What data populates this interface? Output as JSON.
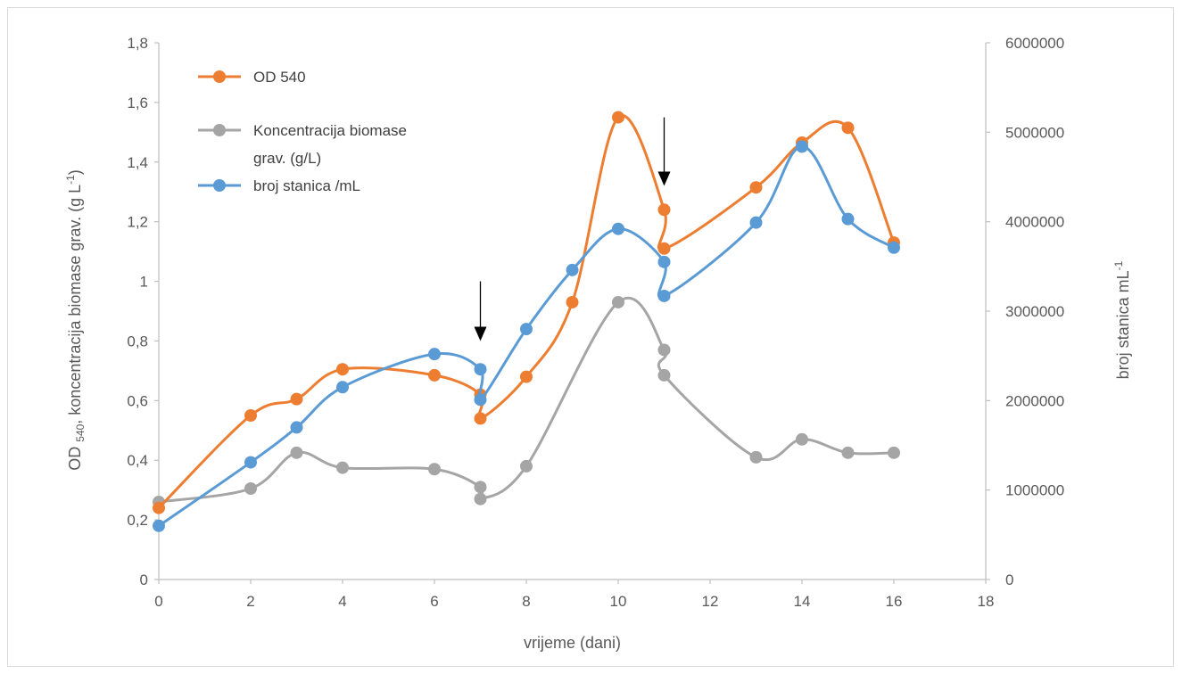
{
  "chart_data": {
    "type": "line",
    "smooth": true,
    "title": "",
    "xlabel": "vrijeme (dani)",
    "ylabel": {
      "main": "OD ",
      "sub": "540",
      "rest": ", koncentracija biomase grav. (g L",
      "sup": "-1",
      "end": ")"
    },
    "y2label": {
      "main": "broj stanica mL",
      "sup": "-1"
    },
    "xlim": [
      0,
      18
    ],
    "ylim": [
      0,
      1.8
    ],
    "y2lim": [
      0,
      6000000
    ],
    "x_ticks": [
      "0",
      "2",
      "4",
      "6",
      "8",
      "10",
      "12",
      "14",
      "16",
      "18"
    ],
    "y_ticks": [
      "0",
      "0,2",
      "0,4",
      "0,6",
      "0,8",
      "1",
      "1,2",
      "1,4",
      "1,6",
      "1,8"
    ],
    "y2_ticks": [
      "0",
      "1000000",
      "2000000",
      "3000000",
      "4000000",
      "5000000",
      "6000000"
    ],
    "grid": false,
    "legend_position": "top-left",
    "series": [
      {
        "name": "OD 540",
        "color": "#ED7D31",
        "axis": "left",
        "x": [
          0,
          2,
          3,
          4,
          6,
          7,
          7,
          8,
          9,
          10,
          11,
          11,
          13,
          14,
          15,
          16
        ],
        "y": [
          0.24,
          0.55,
          0.605,
          0.705,
          0.685,
          0.62,
          0.54,
          0.68,
          0.93,
          1.55,
          1.24,
          1.11,
          1.315,
          1.465,
          1.515,
          1.13
        ]
      },
      {
        "name": "Koncentracija biomase grav. (g/L)",
        "name_lines": [
          "Koncentracija biomase",
          "grav. (g/L)"
        ],
        "color": "#A5A5A5",
        "axis": "left",
        "x": [
          0,
          2,
          3,
          4,
          6,
          7,
          7,
          8,
          10,
          11,
          11,
          13,
          14,
          15,
          16
        ],
        "y": [
          0.26,
          0.305,
          0.425,
          0.375,
          0.37,
          0.31,
          0.27,
          0.38,
          0.93,
          0.77,
          0.685,
          0.41,
          0.47,
          0.425,
          0.425
        ]
      },
      {
        "name": "broj stanica /mL",
        "color": "#5B9BD5",
        "axis": "right",
        "x": [
          0,
          2,
          3,
          4,
          6,
          7,
          7,
          8,
          9,
          10,
          11,
          11,
          13,
          14,
          15,
          16
        ],
        "y": [
          600000,
          1310000,
          1700000,
          2150000,
          2520000,
          2350000,
          2010000,
          2800000,
          3460000,
          3920000,
          3550000,
          3170000,
          3990000,
          4840000,
          4030000,
          3710000
        ]
      }
    ],
    "annotations": [
      {
        "type": "arrow-down",
        "x": 7,
        "y_top": 1.0,
        "y_tip": 0.8
      },
      {
        "type": "arrow-down",
        "x": 11,
        "y_top": 1.55,
        "y_tip": 1.32
      }
    ]
  }
}
